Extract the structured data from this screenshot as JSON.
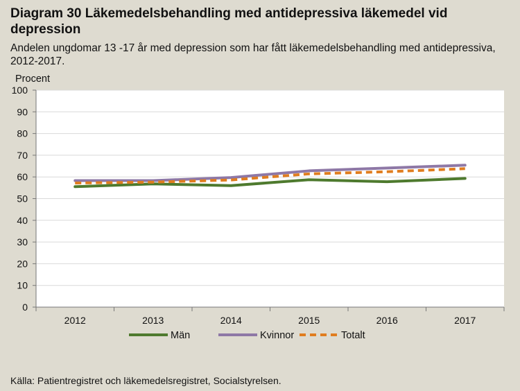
{
  "title": "Diagram 30 Läkemedelsbehandling med antidepressiva läkemedel vid depression",
  "subtitle": "Andelen ungdomar 13 -17 år med depression som har fått läkemedelsbehandling med antidepressiva, 2012-2017.",
  "source": "Källa: Patientregistret och läkemedelsregistret, Socialstyrelsen.",
  "colors": {
    "man": "#4e7a2e",
    "kvinnor": "#8e78a6",
    "totalt": "#e07d1f",
    "plot_bg": "#ffffff",
    "grid": "#d9d9d9"
  },
  "chart_data": {
    "type": "line",
    "title": "Diagram 30 Läkemedelsbehandling med antidepressiva läkemedel vid depression",
    "ylabel": "Procent",
    "xlabel": "",
    "categories": [
      "2012",
      "2013",
      "2014",
      "2015",
      "2016",
      "2017"
    ],
    "ylim": [
      0,
      100
    ],
    "yticks": [
      0,
      10,
      20,
      30,
      40,
      50,
      60,
      70,
      80,
      90,
      100
    ],
    "grid": true,
    "legend": "bottom",
    "series": [
      {
        "name": "Män",
        "key": "man",
        "dashed": false,
        "values": [
          55.5,
          56.8,
          56.0,
          58.7,
          57.8,
          59.3
        ]
      },
      {
        "name": "Kvinnor",
        "key": "kvinnor",
        "dashed": false,
        "values": [
          58.3,
          58.3,
          59.7,
          62.8,
          64.1,
          65.4
        ]
      },
      {
        "name": "Totalt",
        "key": "totalt",
        "dashed": true,
        "values": [
          57.2,
          57.6,
          58.6,
          61.4,
          62.4,
          63.8
        ]
      }
    ]
  }
}
